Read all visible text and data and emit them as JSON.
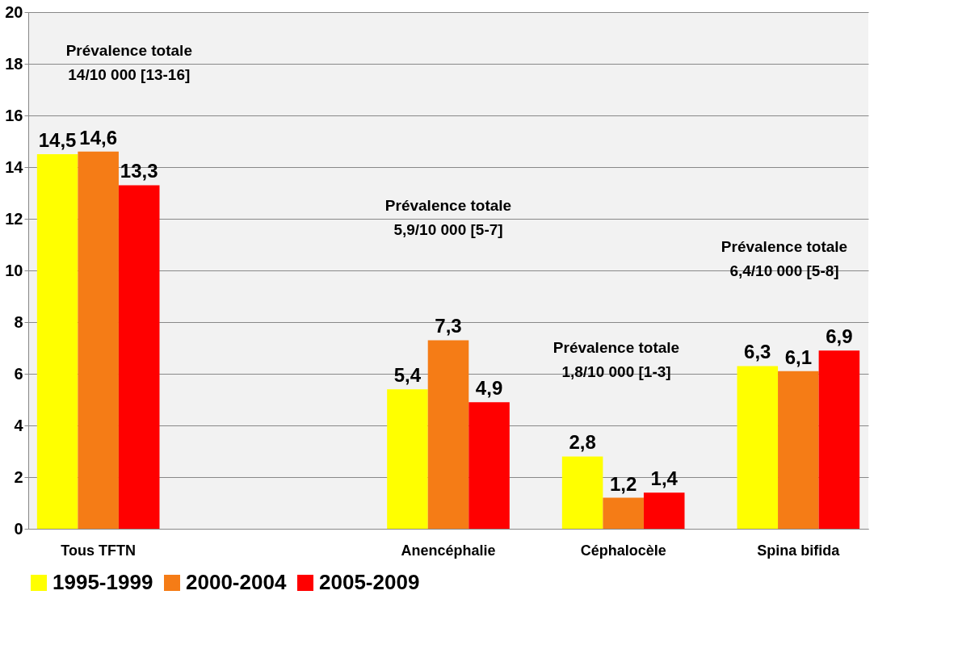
{
  "chart_data": {
    "type": "bar",
    "categories": [
      "Tous TFTN",
      null,
      "Anencéphalie",
      "Céphalocèle",
      "Spina bifida"
    ],
    "series": [
      {
        "name": "1995-1999",
        "color": "#ffff00",
        "values": [
          14.5,
          null,
          5.4,
          2.8,
          6.3
        ],
        "value_labels": [
          "14,5",
          null,
          "5,4",
          "2,8",
          "6,3"
        ]
      },
      {
        "name": "2000-2004",
        "color": "#f57c16",
        "values": [
          14.6,
          null,
          7.3,
          1.2,
          6.1
        ],
        "value_labels": [
          "14,6",
          null,
          "7,3",
          "1,2",
          "6,1"
        ]
      },
      {
        "name": "2005-2009",
        "color": "#ff0000",
        "values": [
          13.3,
          null,
          4.9,
          1.4,
          6.9
        ],
        "value_labels": [
          "13,3",
          null,
          "4,9",
          "1,4",
          "6,9"
        ]
      }
    ],
    "ylim": [
      0,
      20
    ],
    "yticks": [
      0,
      2,
      4,
      6,
      8,
      10,
      12,
      14,
      16,
      18,
      20
    ],
    "grid": "y",
    "legend": "bottom",
    "annotations": [
      "Prévalence totale\n14/10 000 [13-16]",
      "Prévalence totale\n5,9/10 000 [5-7]",
      "Prévalence totale\n1,8/10 000 [1-3]",
      "Prévalence totale\n6,4/10 000 [5-8]"
    ]
  }
}
